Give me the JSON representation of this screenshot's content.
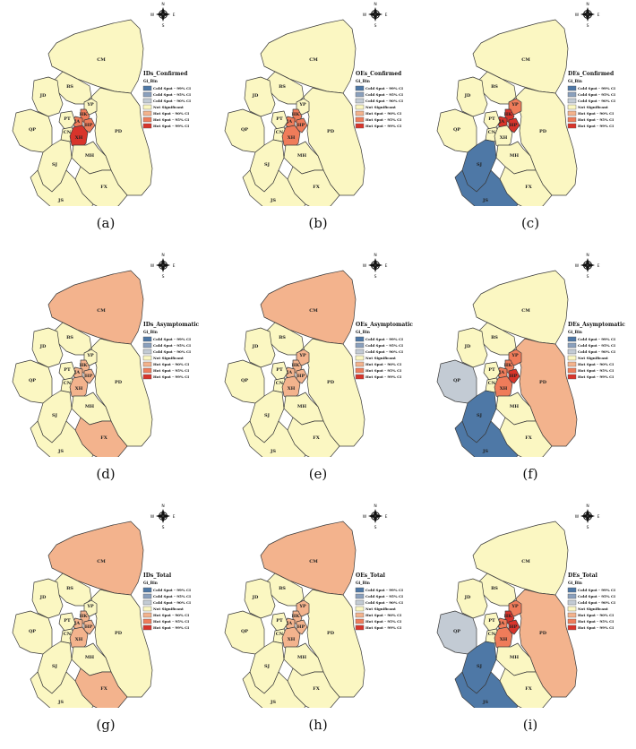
{
  "colors": {
    "background": "#ffffff",
    "outline": "#3a3a3a",
    "cold_99": "#4e78a6",
    "cold_95": "#8aa0bd",
    "cold_90": "#c3cbd4",
    "not_significant": "#fbf7c2",
    "hot_90": "#f3b38d",
    "hot_95": "#ef7c5a",
    "hot_99": "#d8342b"
  },
  "compass": {
    "n": "N",
    "s": "S",
    "e": "E",
    "w": "W"
  },
  "legend": {
    "heading": "Gi_Bin",
    "items": [
      {
        "label": "Cold Spot - 99% CI",
        "color": "#4e78a6"
      },
      {
        "label": "Cold Spot - 95% CI",
        "color": "#8aa0bd"
      },
      {
        "label": "Cold Spot - 90% CI",
        "color": "#c3cbd4"
      },
      {
        "label": "Not Significant",
        "color": "#fbf7c2"
      },
      {
        "label": "Hot Spot - 90% CI",
        "color": "#f3b38d"
      },
      {
        "label": "Hot Spot - 95% CI",
        "color": "#ef7c5a"
      },
      {
        "label": "Hot Spot - 99% CI",
        "color": "#d8342b"
      }
    ]
  },
  "district_labels": [
    "CM",
    "BS",
    "JD",
    "YP",
    "HK",
    "PT",
    "JA",
    "CN",
    "HP",
    "XH",
    "PD",
    "MH",
    "QP",
    "SJ",
    "FX",
    "JS"
  ],
  "panels": [
    {
      "caption": "(a)",
      "title": "IDs_Confirmed",
      "fills": {
        "HK": "hot_95",
        "HP": "hot_95",
        "JA": "hot_95",
        "XH": "hot_99"
      }
    },
    {
      "caption": "(b)",
      "title": "OEs_Confirmed",
      "fills": {
        "HK": "hot_95",
        "HP": "hot_95",
        "JA": "hot_95",
        "XH": "hot_95"
      }
    },
    {
      "caption": "(c)",
      "title": "DEs_Confirmed",
      "fills": {
        "HK": "hot_99",
        "HP": "hot_99",
        "JA": "hot_99",
        "YP": "hot_95",
        "SJ": "cold_99",
        "JS": "cold_99"
      }
    },
    {
      "caption": "(d)",
      "title": "IDs_Asymptomatic",
      "fills": {
        "CM": "hot_90",
        "FX": "hot_90",
        "XH": "hot_90",
        "HP": "hot_90",
        "JA": "hot_90",
        "HK": "hot_90"
      }
    },
    {
      "caption": "(e)",
      "title": "OEs_Asymptomatic",
      "fills": {
        "CM": "hot_90",
        "YP": "hot_90",
        "HK": "hot_90",
        "HP": "hot_90",
        "JA": "hot_90",
        "XH": "hot_90"
      }
    },
    {
      "caption": "(f)",
      "title": "DEs_Asymptomatic",
      "fills": {
        "PD": "hot_90",
        "HK": "hot_95",
        "HP": "hot_99",
        "JA": "hot_95",
        "YP": "hot_95",
        "XH": "hot_95",
        "QP": "cold_90",
        "SJ": "cold_99",
        "JS": "cold_99"
      }
    },
    {
      "caption": "(g)",
      "title": "IDs_Total",
      "fills": {
        "CM": "hot_90",
        "FX": "hot_90",
        "XH": "hot_90",
        "HP": "hot_90",
        "JA": "hot_90",
        "HK": "hot_90"
      }
    },
    {
      "caption": "(h)",
      "title": "OEs_Total",
      "fills": {
        "CM": "hot_90",
        "YP": "hot_90",
        "HK": "hot_90",
        "HP": "hot_90",
        "JA": "hot_90",
        "XH": "hot_90"
      }
    },
    {
      "caption": "(i)",
      "title": "DEs_Total",
      "fills": {
        "PD": "hot_90",
        "HK": "hot_99",
        "HP": "hot_99",
        "JA": "hot_95",
        "YP": "hot_95",
        "XH": "hot_95",
        "QP": "cold_90",
        "SJ": "cold_99",
        "JS": "cold_99"
      }
    }
  ]
}
